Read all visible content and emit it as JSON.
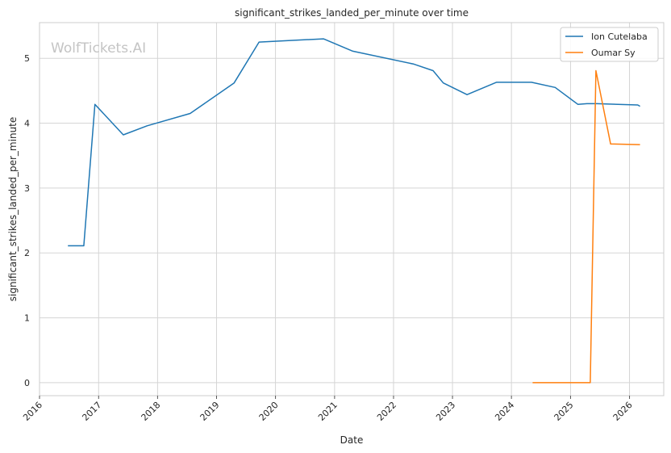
{
  "chart_data": {
    "type": "line",
    "title": "significant_strikes_landed_per_minute over time",
    "xlabel": "Date",
    "ylabel": "significant_strikes_landed_per_minute",
    "watermark": "WolfTickets.AI",
    "xlim": [
      "2016-01-01",
      "2026-08-01"
    ],
    "ylim": [
      -0.2,
      5.55
    ],
    "x_ticks": [
      "2016",
      "2017",
      "2018",
      "2019",
      "2020",
      "2021",
      "2022",
      "2023",
      "2024",
      "2025",
      "2026"
    ],
    "y_ticks": [
      "0",
      "1",
      "2",
      "3",
      "4",
      "5"
    ],
    "grid": true,
    "legend_position": "top-right",
    "series": [
      {
        "name": "Ion Cutelaba",
        "color": "#1f77b4",
        "points": [
          [
            "2016-06-25",
            2.11
          ],
          [
            "2016-10-01",
            2.11
          ],
          [
            "2016-12-09",
            4.29
          ],
          [
            "2017-06-03",
            3.82
          ],
          [
            "2017-10-28",
            3.96
          ],
          [
            "2018-07-22",
            4.15
          ],
          [
            "2019-04-20",
            4.62
          ],
          [
            "2019-09-21",
            5.25
          ],
          [
            "2020-10-24",
            5.3
          ],
          [
            "2021-04-24",
            5.11
          ],
          [
            "2022-05-07",
            4.91
          ],
          [
            "2022-09-03",
            4.81
          ],
          [
            "2022-11-05",
            4.62
          ],
          [
            "2023-04-01",
            4.44
          ],
          [
            "2023-09-30",
            4.63
          ],
          [
            "2024-05-04",
            4.63
          ],
          [
            "2024-09-28",
            4.55
          ],
          [
            "2025-02-15",
            4.29
          ],
          [
            "2025-04-12",
            4.3
          ],
          [
            "2025-06-14",
            4.3
          ],
          [
            "2026-02-21",
            4.28
          ],
          [
            "2026-03-07",
            4.26
          ]
        ]
      },
      {
        "name": "Oumar Sy",
        "color": "#ff7f0e",
        "points": [
          [
            "2024-05-11",
            0.0
          ],
          [
            "2025-05-03",
            0.0
          ],
          [
            "2025-06-07",
            4.81
          ],
          [
            "2025-09-06",
            3.68
          ],
          [
            "2026-03-07",
            3.67
          ]
        ]
      }
    ]
  }
}
